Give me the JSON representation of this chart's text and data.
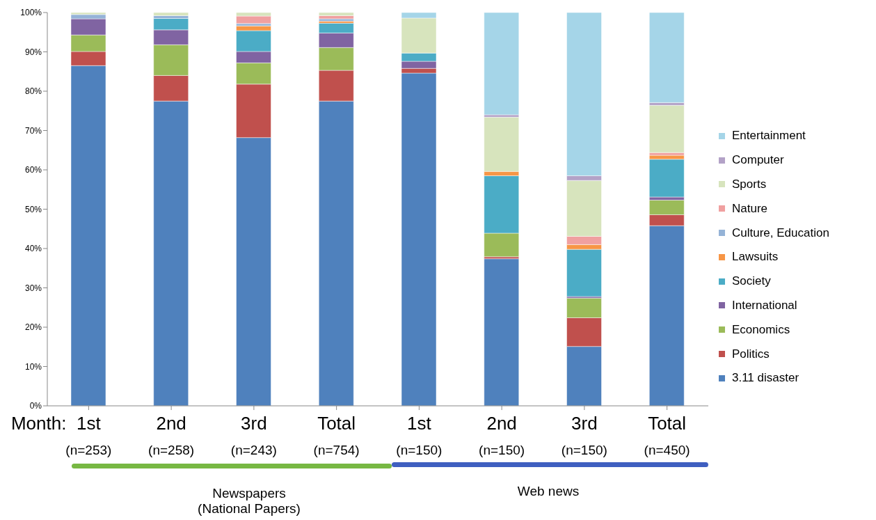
{
  "chart_data": {
    "type": "bar",
    "stacked": true,
    "xlabel": "Month:",
    "categories": [
      "1st\n(n=253)",
      "2nd\n(n=258)",
      "3rd\n(n=243)",
      "Total\n(n=754)",
      "1st\n(n=150)",
      "2nd\n(n=150)",
      "3rd\n(n=150)",
      "Total\n(n=450)"
    ],
    "series": [
      {
        "name": "3.11 disaster",
        "color": "#4f81bd",
        "values": [
          86.5,
          77.5,
          68.2,
          77.5,
          84.6,
          37.4,
          15.1,
          45.8
        ]
      },
      {
        "name": "Politics",
        "color": "#c0504d",
        "values": [
          3.6,
          6.5,
          13.6,
          7.8,
          1.2,
          0.5,
          7.3,
          2.8
        ]
      },
      {
        "name": "Economics",
        "color": "#9bbb59",
        "values": [
          4.2,
          7.8,
          5.4,
          5.8,
          0,
          6.0,
          5.0,
          3.7
        ]
      },
      {
        "name": "International",
        "color": "#8064a2",
        "values": [
          4.1,
          3.8,
          2.9,
          3.7,
          1.8,
          0,
          0.4,
          0.8
        ]
      },
      {
        "name": "Society",
        "color": "#4bacc6",
        "values": [
          0,
          2.9,
          5.3,
          2.5,
          2.1,
          14.6,
          12.0,
          9.6
        ]
      },
      {
        "name": "Lawsuits",
        "color": "#f79646",
        "values": [
          0,
          0,
          1.2,
          0.5,
          0,
          1.1,
          1.2,
          1.0
        ]
      },
      {
        "name": "Culture, Education",
        "color": "#95b3d7",
        "values": [
          1.1,
          0.7,
          0.6,
          0.6,
          0,
          0,
          0,
          0
        ]
      },
      {
        "name": "Nature",
        "color": "#f0a0a0",
        "values": [
          0,
          0,
          1.9,
          0.8,
          0,
          0,
          2.1,
          0.7
        ]
      },
      {
        "name": "Sports",
        "color": "#d7e4bd",
        "values": [
          0.5,
          0.8,
          0.9,
          0.8,
          8.9,
          13.8,
          14.2,
          12.0
        ]
      },
      {
        "name": "Computer",
        "color": "#b3a2c7",
        "values": [
          0,
          0,
          0,
          0,
          0,
          0.6,
          1.2,
          0.7
        ]
      },
      {
        "name": "Entertainment",
        "color": "#a5d5e8",
        "values": [
          0,
          0,
          0,
          0,
          1.4,
          26.0,
          41.5,
          22.9
        ]
      }
    ],
    "ylim": [
      0,
      100
    ],
    "yticks": [
      {
        "value": 0,
        "label": "0%"
      },
      {
        "value": 10,
        "label": "10%"
      },
      {
        "value": 20,
        "label": "20%"
      },
      {
        "value": 30,
        "label": "30%"
      },
      {
        "value": 40,
        "label": "40%"
      },
      {
        "value": 50,
        "label": "50%"
      },
      {
        "value": 60,
        "label": "60%"
      },
      {
        "value": 70,
        "label": "70%"
      },
      {
        "value": 80,
        "label": "80%"
      },
      {
        "value": 90,
        "label": "90%"
      },
      {
        "value": 100,
        "label": "100%"
      }
    ],
    "grid": false,
    "legend": "right",
    "annotations": [
      "Newspapers",
      "(National Papers)",
      "Web news"
    ]
  }
}
